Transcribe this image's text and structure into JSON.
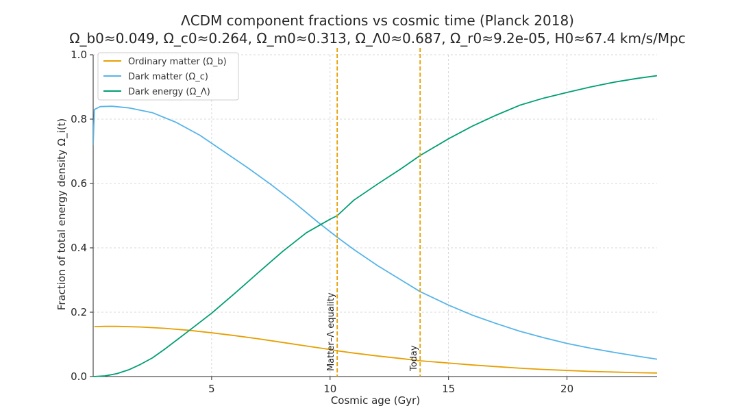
{
  "chart_data": {
    "type": "line",
    "title": "ΛCDM component fractions vs cosmic time (Planck 2018)",
    "subtitle": "Ω_b0≈0.049, Ω_c0≈0.264, Ω_m0≈0.313, Ω_Λ0≈0.687, Ω_r0≈9.2e-05, H0≈67.4 km/s/Mpc",
    "xlabel": "Cosmic age (Gyr)",
    "ylabel": "Fraction of total energy density Ω_i(t)",
    "xlim": [
      0,
      23.8
    ],
    "ylim": [
      0,
      1.0
    ],
    "xticks": [
      5,
      10,
      15,
      20
    ],
    "yticks": [
      0.0,
      0.2,
      0.4,
      0.6,
      0.8,
      1.0
    ],
    "grid": true,
    "legend_position": "top-left",
    "series": [
      {
        "name": "Ordinary matter (Ω_b)",
        "color": "#E69F00",
        "x": [
          0.05,
          0.5,
          1,
          2,
          3,
          4,
          5,
          6,
          7,
          8,
          9,
          10,
          10.3,
          11,
          12,
          13,
          13.8,
          15,
          16,
          17,
          18,
          19,
          20,
          21,
          22,
          23,
          23.8
        ],
        "y": [
          0.155,
          0.156,
          0.156,
          0.154,
          0.15,
          0.144,
          0.136,
          0.127,
          0.117,
          0.106,
          0.095,
          0.084,
          0.08,
          0.073,
          0.064,
          0.056,
          0.049,
          0.042,
          0.036,
          0.031,
          0.026,
          0.022,
          0.019,
          0.016,
          0.014,
          0.012,
          0.011
        ]
      },
      {
        "name": "Dark matter (Ω_c)",
        "color": "#56B4E9",
        "x": [
          0.0,
          0.05,
          0.3,
          0.8,
          1.5,
          2.5,
          3.5,
          4.5,
          5.5,
          6.5,
          7.5,
          8.5,
          9.5,
          10.3,
          11,
          12,
          13,
          13.8,
          15,
          16,
          17,
          18,
          19,
          20,
          21,
          22,
          23,
          23.8
        ],
        "y": [
          0.72,
          0.83,
          0.839,
          0.84,
          0.835,
          0.82,
          0.79,
          0.75,
          0.7,
          0.65,
          0.597,
          0.54,
          0.479,
          0.433,
          0.395,
          0.345,
          0.3,
          0.264,
          0.222,
          0.191,
          0.165,
          0.141,
          0.121,
          0.103,
          0.088,
          0.075,
          0.063,
          0.054
        ]
      },
      {
        "name": "Dark energy (Ω_Λ)",
        "color": "#009E73",
        "x": [
          0.0,
          0.5,
          1,
          1.5,
          2,
          2.5,
          3,
          3.5,
          4,
          5,
          6,
          7,
          8,
          9,
          10,
          10.3,
          11,
          12,
          13,
          13.8,
          15,
          16,
          17,
          18,
          19,
          20,
          21,
          22,
          23,
          23.8
        ],
        "y": [
          0.0,
          0.002,
          0.009,
          0.021,
          0.038,
          0.058,
          0.084,
          0.112,
          0.14,
          0.197,
          0.26,
          0.325,
          0.389,
          0.447,
          0.489,
          0.5,
          0.548,
          0.598,
          0.646,
          0.687,
          0.739,
          0.778,
          0.812,
          0.843,
          0.865,
          0.883,
          0.9,
          0.915,
          0.927,
          0.935
        ]
      }
    ],
    "vlines": [
      {
        "x": 10.3,
        "label": "Matter–Λ equality",
        "color": "#E69F00",
        "style": "dashed"
      },
      {
        "x": 13.8,
        "label": "Today",
        "color": "#E69F00",
        "style": "dashed"
      }
    ]
  }
}
